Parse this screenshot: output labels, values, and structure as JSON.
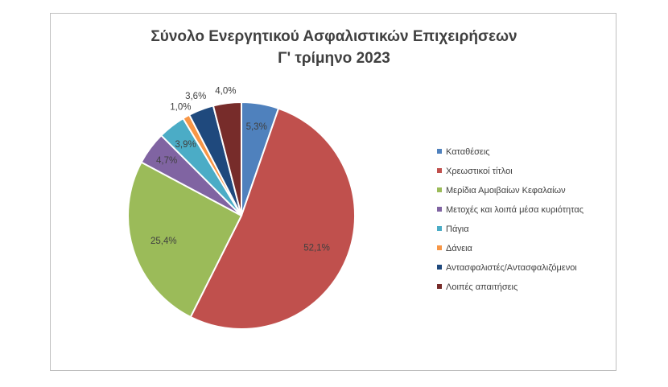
{
  "chart_data": {
    "type": "pie",
    "title": "Σύνολο Ενεργητικού Ασφαλιστικών Επιχειρήσεων",
    "subtitle": "Γ' τρίμηνο 2023",
    "unit": "%",
    "legend_position": "right",
    "slices": [
      {
        "name": "Καταθέσεις",
        "value": 5.3,
        "label": "5,3%",
        "color": "#4f81bd"
      },
      {
        "name": "Χρεωστικοί τίτλοι",
        "value": 52.1,
        "label": "52,1%",
        "color": "#c0504d"
      },
      {
        "name": "Μερίδια Αμοιβαίων Κεφαλαίων",
        "value": 25.4,
        "label": "25,4%",
        "color": "#9bbb59"
      },
      {
        "name": "Μετοχές και λοιπά μέσα κυριότητας",
        "value": 4.7,
        "label": "4,7%",
        "color": "#8064a2"
      },
      {
        "name": "Πάγια",
        "value": 3.9,
        "label": "3,9%",
        "color": "#4bacc6"
      },
      {
        "name": "Δάνεια",
        "value": 1.0,
        "label": "1,0%",
        "color": "#f79646"
      },
      {
        "name": "Αντασφαλιστές/Αντασφαλιζόμενοι",
        "value": 3.6,
        "label": "3,6%",
        "color": "#1f497d"
      },
      {
        "name": "Λοιπές απαιτήσεις",
        "value": 4.0,
        "label": "4,0%",
        "color": "#772c2a"
      }
    ]
  }
}
